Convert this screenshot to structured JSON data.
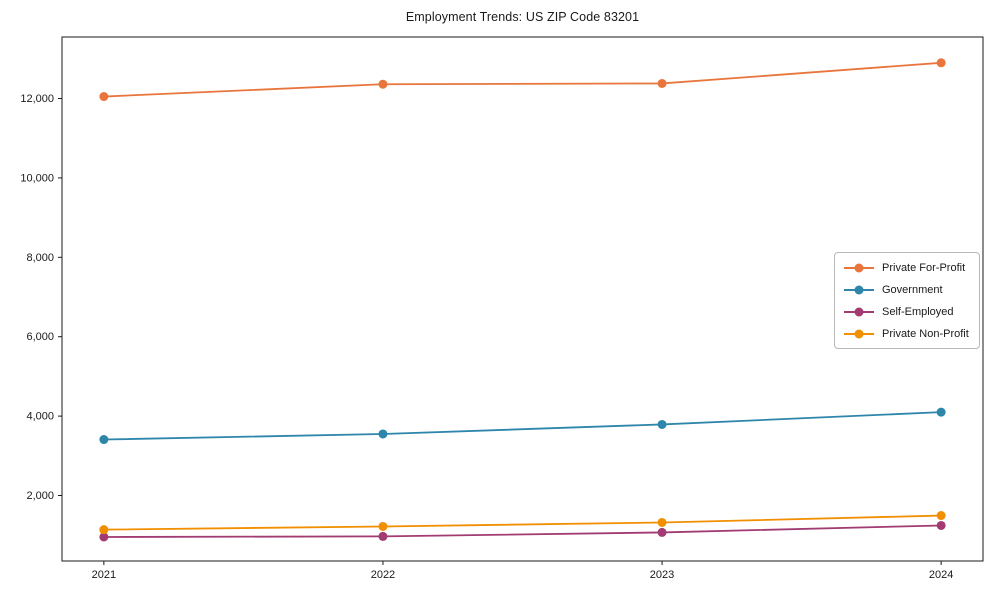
{
  "chart_data": {
    "type": "line",
    "title": "Employment Trends: US ZIP Code 83201",
    "categories": [
      "2021",
      "2022",
      "2023",
      "2024"
    ],
    "series": [
      {
        "name": "Private For-Profit",
        "color": "#e8763c",
        "values": [
          12050,
          12360,
          12380,
          12900
        ]
      },
      {
        "name": "Government",
        "color": "#2e86ab",
        "values": [
          3410,
          3550,
          3790,
          4100
        ]
      },
      {
        "name": "Self-Employed",
        "color": "#a23b72",
        "values": [
          955,
          970,
          1070,
          1245
        ]
      },
      {
        "name": "Private Non-Profit",
        "color": "#f18f01",
        "values": [
          1140,
          1220,
          1320,
          1495
        ]
      }
    ],
    "yticks": [
      2000,
      4000,
      6000,
      8000,
      10000,
      12000
    ],
    "ytick_labels": [
      "2,000",
      "4,000",
      "6,000",
      "8,000",
      "10,000",
      "12,000"
    ],
    "ylim": [
      350,
      13550
    ],
    "xlabel": "",
    "ylabel": "",
    "grid": false,
    "legend_position": "center-right",
    "legend_entries": [
      "Private For-Profit",
      "Government",
      "Self-Employed",
      "Private Non-Profit"
    ]
  }
}
